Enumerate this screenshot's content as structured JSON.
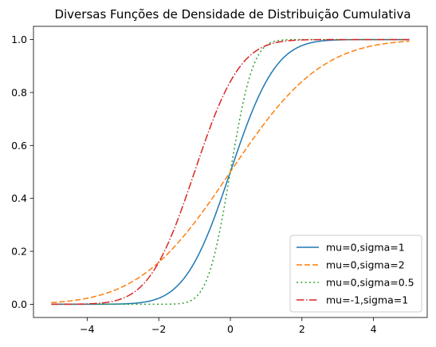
{
  "chart_data": {
    "type": "line",
    "title": "Diversas Funções de Densidade de Distribuição Cumulativa",
    "xlabel": "",
    "ylabel": "",
    "xlim": [
      -5.5,
      5.5
    ],
    "ylim": [
      -0.05,
      1.05
    ],
    "x_ticks": [
      -4,
      -2,
      0,
      2,
      4
    ],
    "x_tick_labels": [
      "−4",
      "−2",
      "0",
      "2",
      "4"
    ],
    "y_ticks": [
      0.0,
      0.2,
      0.4,
      0.6,
      0.8,
      1.0
    ],
    "y_tick_labels": [
      "0.0",
      "0.2",
      "0.4",
      "0.6",
      "0.8",
      "1.0"
    ],
    "grid": false,
    "legend_position": "lower-right",
    "x_range": [
      -5,
      5
    ],
    "series": [
      {
        "name": "mu=0,sigma=1",
        "mu": 0,
        "sigma": 1,
        "color": "#1f77b4",
        "style": "solid"
      },
      {
        "name": "mu=0,sigma=2",
        "mu": 0,
        "sigma": 2,
        "color": "#ff7f0e",
        "style": "dashed"
      },
      {
        "name": "mu=0,sigma=0.5",
        "mu": 0,
        "sigma": 0.5,
        "color": "#2ca02c",
        "style": "dotted"
      },
      {
        "name": "mu=-1,sigma=1",
        "mu": -1,
        "sigma": 1,
        "color": "#d62728",
        "style": "dashdot"
      }
    ]
  }
}
